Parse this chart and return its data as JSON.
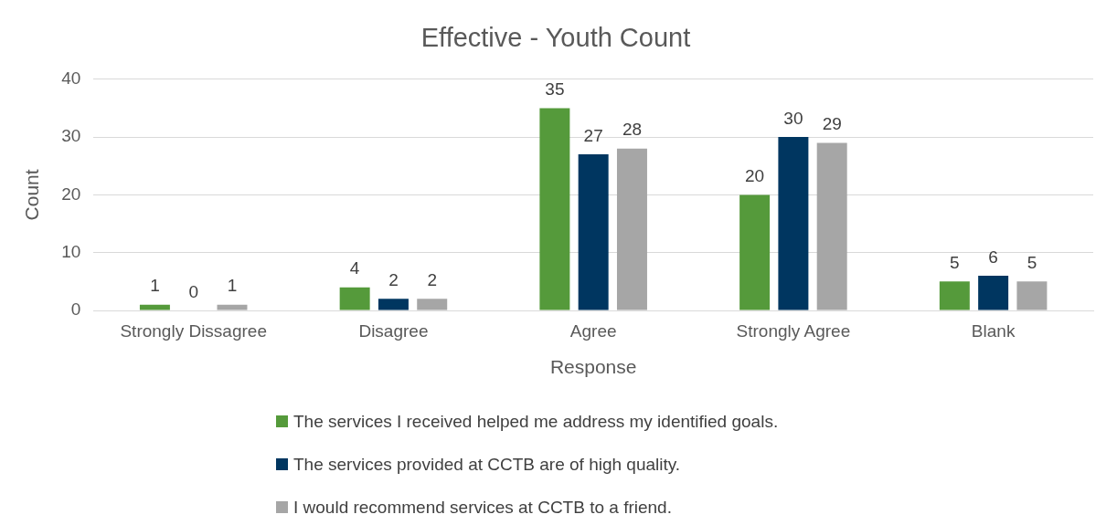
{
  "chart_data": {
    "type": "bar",
    "title": "Effective - Youth Count",
    "xlabel": "Response",
    "ylabel": "Count",
    "categories": [
      "Strongly Dissagree",
      "Disagree",
      "Agree",
      "Strongly Agree",
      "Blank"
    ],
    "series": [
      {
        "name": "The services I received helped me address my identified goals.",
        "color": "#559a3b",
        "values": [
          1,
          4,
          35,
          20,
          5
        ]
      },
      {
        "name": "The services provided at CCTB are of high quality.",
        "color": "#003660",
        "values": [
          0,
          2,
          27,
          30,
          6
        ]
      },
      {
        "name": "I would recommend services at CCTB to a friend.",
        "color": "#a6a6a6",
        "values": [
          1,
          2,
          28,
          29,
          5
        ]
      }
    ],
    "ylim": [
      0,
      40
    ],
    "yticks": [
      0,
      10,
      20,
      30,
      40
    ],
    "grid": "y",
    "legend": "bottom",
    "data_labels": true
  }
}
